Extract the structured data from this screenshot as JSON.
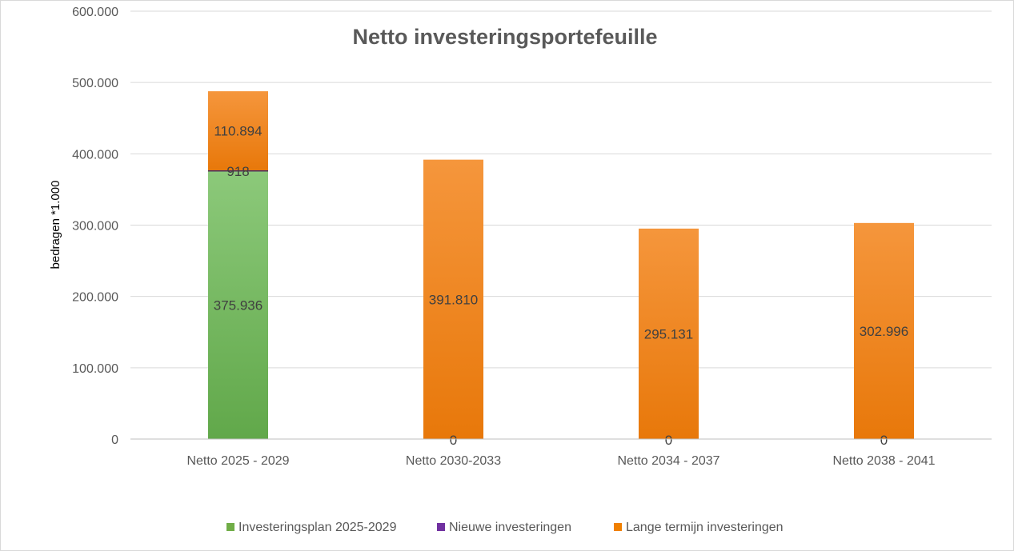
{
  "chart_data": {
    "type": "bar",
    "stacked": true,
    "title": "Netto investeringsportefeuille",
    "ylabel": "bedragen *1.000",
    "xlabel": "",
    "ylim": [
      0,
      600000
    ],
    "y_ticks": [
      0,
      100000,
      200000,
      300000,
      400000,
      500000,
      600000
    ],
    "y_tick_labels": [
      "0",
      "100.000",
      "200.000",
      "300.000",
      "400.000",
      "500.000",
      "600.000"
    ],
    "grid": true,
    "legend_position": "bottom",
    "categories": [
      "Netto 2025 - 2029",
      "Netto 2030-2033",
      "Netto 2034 - 2037",
      "Netto 2038 - 2041"
    ],
    "series": [
      {
        "name": "Investeringsplan 2025-2029",
        "color": "#70ad47",
        "values": [
          375936,
          0,
          0,
          0
        ],
        "labels": [
          "375.936",
          "0",
          "0",
          "0"
        ]
      },
      {
        "name": "Nieuwe investeringen",
        "color": "#7030a0",
        "values": [
          918,
          null,
          null,
          null
        ],
        "labels": [
          "918",
          "",
          "",
          ""
        ]
      },
      {
        "name": "Lange termijn investeringen",
        "color": "#f08000",
        "values": [
          110894,
          391810,
          295131,
          302996
        ],
        "labels": [
          "110.894",
          "391.810",
          "295.131",
          "302.996"
        ]
      }
    ]
  }
}
